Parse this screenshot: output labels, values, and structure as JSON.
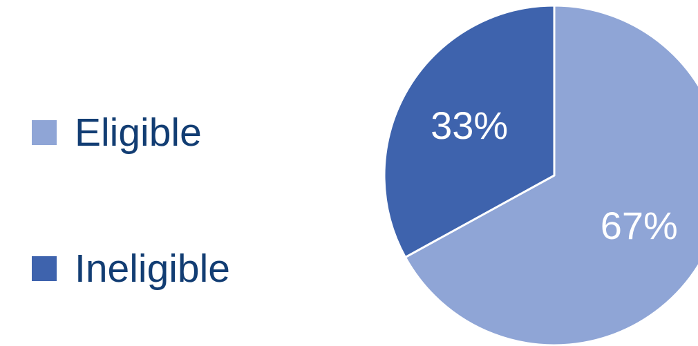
{
  "chart_data": {
    "type": "pie",
    "title": "",
    "categories": [
      "Eligible",
      "Ineligible"
    ],
    "values": [
      67,
      33
    ],
    "data_labels": [
      "67%",
      "33%"
    ],
    "colors": [
      "#8fa5d6",
      "#3e63ad"
    ],
    "legend_position": "left",
    "start_angle_deg": 0,
    "direction": "clockwise"
  },
  "legend": {
    "items": [
      {
        "label": "Eligible",
        "color": "#8fa5d6"
      },
      {
        "label": "Ineligible",
        "color": "#3e63ad"
      }
    ]
  },
  "style": {
    "text_color": "#123d73",
    "slice_border_color": "#ffffff",
    "label_color": "#ffffff"
  }
}
